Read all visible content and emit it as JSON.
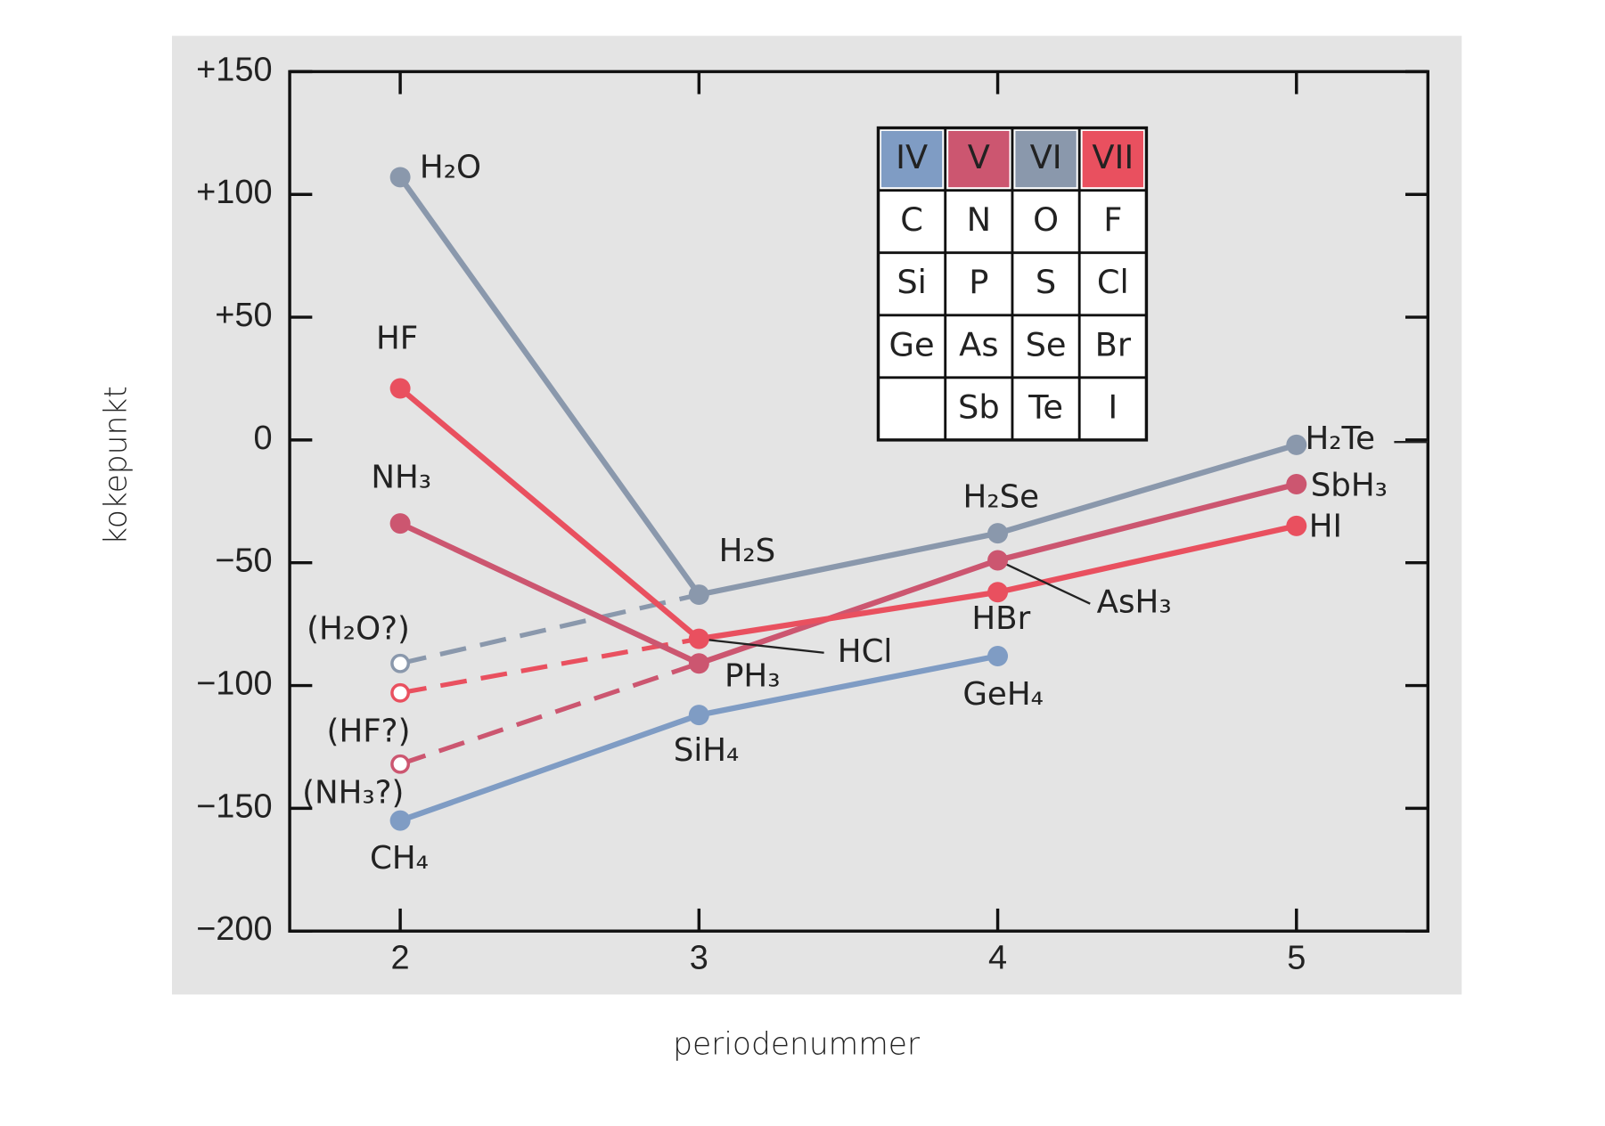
{
  "chart_data": {
    "type": "line",
    "y_label": "kokepunkt",
    "x_label": "periodenummer",
    "x": [
      2,
      3,
      4,
      5
    ],
    "xticks": [
      2,
      3,
      4,
      5
    ],
    "xlim": [
      1.63,
      5.44
    ],
    "ylim": [
      -200,
      150
    ],
    "yticks": [
      {
        "value": 150,
        "label": "+150"
      },
      {
        "value": 100,
        "label": "+100"
      },
      {
        "value": 50,
        "label": "+50"
      },
      0,
      {
        "value": -50,
        "label": "−50"
      },
      {
        "value": -100,
        "label": "−100"
      },
      {
        "value": -150,
        "label": "−150"
      },
      {
        "value": -200,
        "label": "−200"
      }
    ],
    "series": [
      {
        "name": "IV",
        "color": "#7f9cc4",
        "values": [
          -155,
          -112,
          -88,
          null
        ],
        "point_labels": [
          "CH₄",
          "SiH₄",
          "GeH₄",
          null
        ]
      },
      {
        "name": "V",
        "color": "#cc5670",
        "values": [
          -34,
          -91,
          -49,
          -18
        ],
        "point_labels": [
          "NH₃",
          "PH₃",
          "AsH₃",
          "SbH₃"
        ],
        "estimate": {
          "value": -132,
          "label": "(NH₃?)"
        }
      },
      {
        "name": "VI",
        "color": "#8a98ac",
        "values": [
          107,
          -63,
          -38,
          -2
        ],
        "point_labels": [
          "H₂O",
          "H₂S",
          "H₂Se",
          "H₂Te"
        ],
        "estimate": {
          "value": -91,
          "label": "(H₂O?)"
        }
      },
      {
        "name": "VII",
        "color": "#e9505f",
        "values": [
          21,
          -81,
          -62,
          -35
        ],
        "point_labels": [
          "HF",
          "HCl",
          "HBr",
          "HI"
        ],
        "estimate": {
          "value": -103,
          "label": "(HF?)"
        }
      }
    ],
    "element_table": [
      [
        "C",
        "N",
        "O",
        "F"
      ],
      [
        "Si",
        "P",
        "S",
        "Cl"
      ],
      [
        "Ge",
        "As",
        "Se",
        "Br"
      ],
      [
        null,
        "Sb",
        "Te",
        "I"
      ]
    ]
  }
}
